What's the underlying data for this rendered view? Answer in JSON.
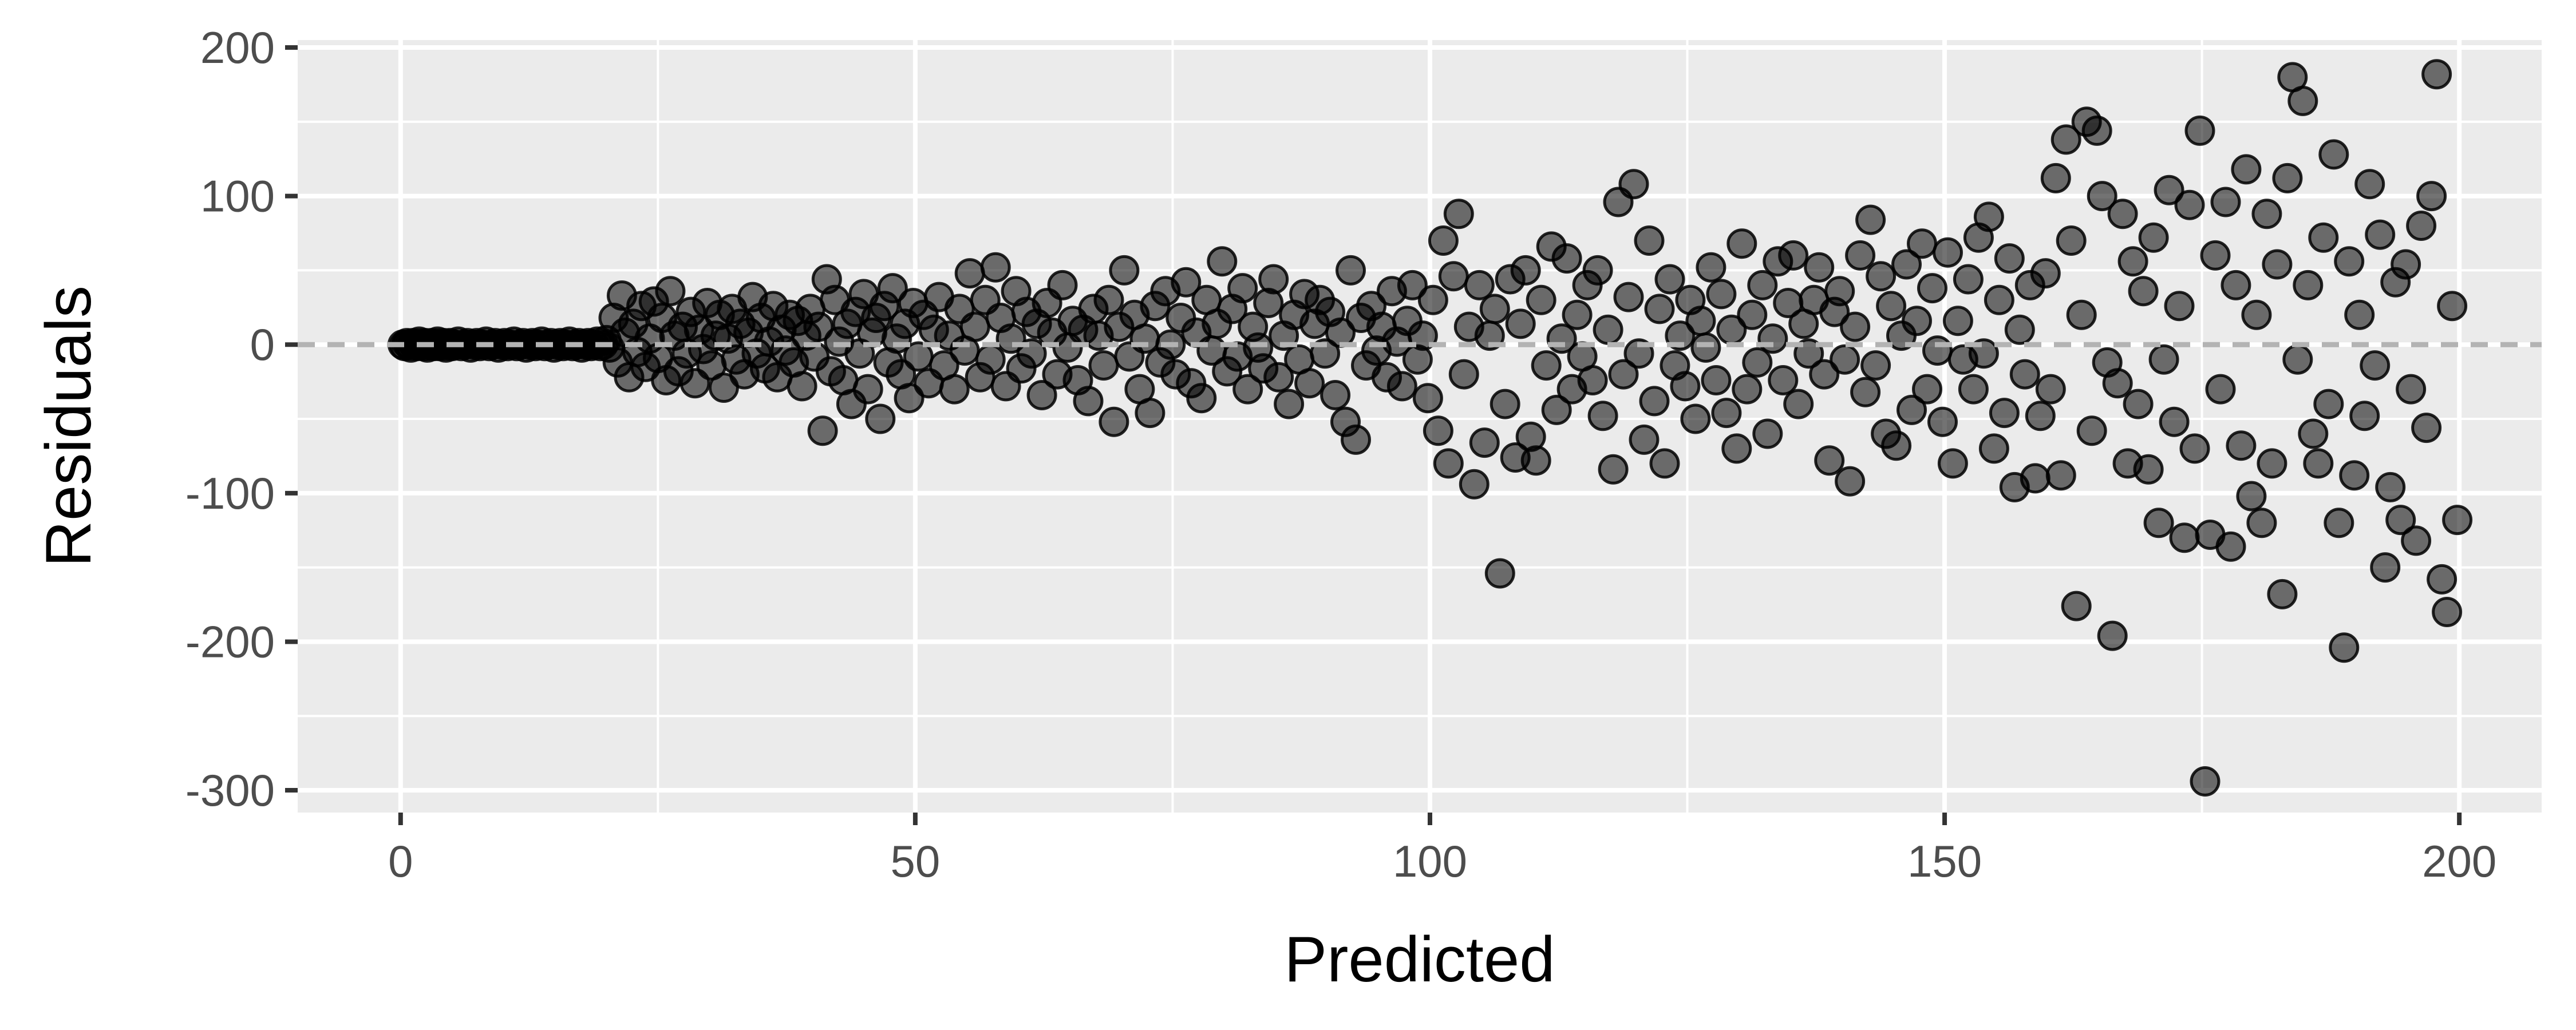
{
  "chart_data": {
    "type": "scatter",
    "title": "",
    "xlabel": "Predicted",
    "ylabel": "Residuals",
    "xlim": [
      -10,
      208
    ],
    "ylim": [
      -315,
      205
    ],
    "x_ticks": [
      0,
      50,
      100,
      150,
      200
    ],
    "y_ticks": [
      -300,
      -200,
      -100,
      0,
      100,
      200
    ],
    "x_tick_labels": [
      "0",
      "50",
      "100",
      "150",
      "200"
    ],
    "y_tick_labels": [
      "-300",
      "-200",
      "-100",
      "0",
      "100",
      "200"
    ],
    "grid": true,
    "legend": "none",
    "reference_line": {
      "y": 0,
      "style": "dashed",
      "color": "#b3b3b3"
    },
    "point_color": "#000000",
    "point_alpha": 0.55,
    "points": [
      [
        0.2,
        0
      ],
      [
        0.4,
        -1
      ],
      [
        0.6,
        1
      ],
      [
        0.8,
        0
      ],
      [
        1.0,
        -2
      ],
      [
        1.2,
        1
      ],
      [
        1.4,
        0
      ],
      [
        1.6,
        -1
      ],
      [
        1.8,
        2
      ],
      [
        2.0,
        0
      ],
      [
        2.2,
        -1
      ],
      [
        2.4,
        1
      ],
      [
        2.6,
        -2
      ],
      [
        2.8,
        0
      ],
      [
        3.0,
        1
      ],
      [
        3.2,
        -1
      ],
      [
        3.4,
        0
      ],
      [
        3.6,
        2
      ],
      [
        3.8,
        -1
      ],
      [
        4.0,
        0
      ],
      [
        4.2,
        1
      ],
      [
        4.4,
        -2
      ],
      [
        4.6,
        0
      ],
      [
        4.8,
        1
      ],
      [
        5.0,
        -1
      ],
      [
        5.3,
        0
      ],
      [
        5.6,
        2
      ],
      [
        5.9,
        -1
      ],
      [
        6.2,
        0
      ],
      [
        6.5,
        1
      ],
      [
        6.8,
        -2
      ],
      [
        7.1,
        0
      ],
      [
        7.4,
        1
      ],
      [
        7.7,
        -1
      ],
      [
        8.0,
        0
      ],
      [
        8.3,
        2
      ],
      [
        8.6,
        -1
      ],
      [
        8.9,
        0
      ],
      [
        9.2,
        1
      ],
      [
        9.5,
        -2
      ],
      [
        9.8,
        0
      ],
      [
        10.1,
        1
      ],
      [
        10.4,
        -1
      ],
      [
        10.7,
        0
      ],
      [
        11.0,
        2
      ],
      [
        11.3,
        -1
      ],
      [
        11.6,
        0
      ],
      [
        11.9,
        1
      ],
      [
        12.2,
        -2
      ],
      [
        12.5,
        0
      ],
      [
        12.8,
        1
      ],
      [
        13.1,
        -1
      ],
      [
        13.4,
        0
      ],
      [
        13.7,
        2
      ],
      [
        14.0,
        -1
      ],
      [
        14.3,
        0
      ],
      [
        14.6,
        1
      ],
      [
        14.9,
        -2
      ],
      [
        15.2,
        0
      ],
      [
        15.5,
        1
      ],
      [
        15.8,
        -1
      ],
      [
        16.1,
        0
      ],
      [
        16.4,
        2
      ],
      [
        16.7,
        -1
      ],
      [
        17.0,
        0
      ],
      [
        17.3,
        1
      ],
      [
        17.6,
        -2
      ],
      [
        17.9,
        0
      ],
      [
        18.2,
        1
      ],
      [
        18.5,
        -1
      ],
      [
        18.8,
        0
      ],
      [
        19.1,
        2
      ],
      [
        19.4,
        -1
      ],
      [
        19.7,
        0
      ],
      [
        20.0,
        3
      ],
      [
        20.3,
        -2
      ],
      [
        20.7,
        18
      ],
      [
        21.1,
        -12
      ],
      [
        21.5,
        33
      ],
      [
        21.8,
        8
      ],
      [
        22.2,
        -22
      ],
      [
        22.6,
        14
      ],
      [
        23.0,
        -5
      ],
      [
        23.4,
        26
      ],
      [
        23.8,
        -15
      ],
      [
        24.2,
        4
      ],
      [
        24.6,
        29
      ],
      [
        25.0,
        -9
      ],
      [
        25.4,
        18
      ],
      [
        25.8,
        -24
      ],
      [
        26.2,
        36
      ],
      [
        26.6,
        6
      ],
      [
        27.0,
        -18
      ],
      [
        27.4,
        12
      ],
      [
        27.8,
        -6
      ],
      [
        28.2,
        22
      ],
      [
        28.6,
        -26
      ],
      [
        29.0,
        10
      ],
      [
        29.4,
        -3
      ],
      [
        29.8,
        28
      ],
      [
        30.2,
        -14
      ],
      [
        30.6,
        6
      ],
      [
        31.0,
        20
      ],
      [
        31.4,
        -29
      ],
      [
        31.8,
        4
      ],
      [
        32.2,
        24
      ],
      [
        32.6,
        -10
      ],
      [
        33.0,
        14
      ],
      [
        33.4,
        -20
      ],
      [
        33.8,
        8
      ],
      [
        34.2,
        32
      ],
      [
        34.6,
        -6
      ],
      [
        35.0,
        18
      ],
      [
        35.4,
        -16
      ],
      [
        35.8,
        2
      ],
      [
        36.2,
        26
      ],
      [
        36.6,
        -22
      ],
      [
        37.0,
        10
      ],
      [
        37.4,
        -4
      ],
      [
        37.8,
        20
      ],
      [
        38.2,
        -12
      ],
      [
        38.6,
        16
      ],
      [
        39.0,
        -28
      ],
      [
        39.4,
        6
      ],
      [
        39.8,
        24
      ],
      [
        40.2,
        -8
      ],
      [
        40.6,
        12
      ],
      [
        41.0,
        -58
      ],
      [
        41.4,
        44
      ],
      [
        41.8,
        -18
      ],
      [
        42.2,
        30
      ],
      [
        42.6,
        2
      ],
      [
        43.0,
        -24
      ],
      [
        43.4,
        14
      ],
      [
        43.8,
        -40
      ],
      [
        44.2,
        22
      ],
      [
        44.6,
        -6
      ],
      [
        45.0,
        34
      ],
      [
        45.4,
        -30
      ],
      [
        45.8,
        8
      ],
      [
        46.2,
        18
      ],
      [
        46.6,
        -50
      ],
      [
        47.0,
        26
      ],
      [
        47.4,
        -12
      ],
      [
        47.8,
        38
      ],
      [
        48.2,
        4
      ],
      [
        48.6,
        -20
      ],
      [
        49.0,
        14
      ],
      [
        49.4,
        -36
      ],
      [
        49.8,
        28
      ],
      [
        50.3,
        -8
      ],
      [
        50.8,
        20
      ],
      [
        51.3,
        -26
      ],
      [
        51.8,
        10
      ],
      [
        52.3,
        32
      ],
      [
        52.8,
        -14
      ],
      [
        53.3,
        6
      ],
      [
        53.8,
        -30
      ],
      [
        54.3,
        24
      ],
      [
        54.8,
        -4
      ],
      [
        55.3,
        48
      ],
      [
        55.8,
        12
      ],
      [
        56.3,
        -22
      ],
      [
        56.8,
        30
      ],
      [
        57.3,
        -10
      ],
      [
        57.8,
        52
      ],
      [
        58.3,
        18
      ],
      [
        58.8,
        -28
      ],
      [
        59.3,
        4
      ],
      [
        59.8,
        36
      ],
      [
        60.3,
        -16
      ],
      [
        60.8,
        22
      ],
      [
        61.3,
        -6
      ],
      [
        61.8,
        14
      ],
      [
        62.3,
        -34
      ],
      [
        62.8,
        28
      ],
      [
        63.3,
        8
      ],
      [
        63.8,
        -20
      ],
      [
        64.3,
        40
      ],
      [
        64.8,
        -2
      ],
      [
        65.3,
        16
      ],
      [
        65.8,
        -24
      ],
      [
        66.3,
        10
      ],
      [
        66.8,
        -38
      ],
      [
        67.3,
        24
      ],
      [
        67.8,
        6
      ],
      [
        68.3,
        -14
      ],
      [
        68.8,
        30
      ],
      [
        69.3,
        -52
      ],
      [
        69.8,
        12
      ],
      [
        70.3,
        50
      ],
      [
        70.8,
        -8
      ],
      [
        71.3,
        20
      ],
      [
        71.8,
        -30
      ],
      [
        72.3,
        4
      ],
      [
        72.8,
        -46
      ],
      [
        73.3,
        26
      ],
      [
        73.8,
        -12
      ],
      [
        74.3,
        36
      ],
      [
        74.8,
        0
      ],
      [
        75.3,
        -20
      ],
      [
        75.8,
        18
      ],
      [
        76.3,
        42
      ],
      [
        76.8,
        -26
      ],
      [
        77.3,
        8
      ],
      [
        77.8,
        -36
      ],
      [
        78.3,
        30
      ],
      [
        78.8,
        -4
      ],
      [
        79.3,
        14
      ],
      [
        79.8,
        56
      ],
      [
        80.3,
        -18
      ],
      [
        80.8,
        24
      ],
      [
        81.3,
        -8
      ],
      [
        81.8,
        38
      ],
      [
        82.3,
        -30
      ],
      [
        82.8,
        12
      ],
      [
        83.3,
        -2
      ],
      [
        83.8,
        -16
      ],
      [
        84.3,
        28
      ],
      [
        84.8,
        44
      ],
      [
        85.3,
        -22
      ],
      [
        85.8,
        6
      ],
      [
        86.3,
        -40
      ],
      [
        86.8,
        20
      ],
      [
        87.3,
        -10
      ],
      [
        87.8,
        34
      ],
      [
        88.3,
        -26
      ],
      [
        88.8,
        14
      ],
      [
        89.3,
        30
      ],
      [
        89.8,
        -6
      ],
      [
        90.3,
        22
      ],
      [
        90.8,
        -34
      ],
      [
        91.3,
        8
      ],
      [
        91.8,
        -52
      ],
      [
        92.3,
        50
      ],
      [
        92.8,
        -64
      ],
      [
        93.3,
        18
      ],
      [
        93.8,
        -14
      ],
      [
        94.3,
        26
      ],
      [
        94.8,
        -4
      ],
      [
        95.3,
        12
      ],
      [
        95.8,
        -22
      ],
      [
        96.3,
        36
      ],
      [
        96.8,
        2
      ],
      [
        97.3,
        -28
      ],
      [
        97.8,
        16
      ],
      [
        98.3,
        40
      ],
      [
        98.8,
        -10
      ],
      [
        99.3,
        6
      ],
      [
        99.8,
        -36
      ],
      [
        100.3,
        30
      ],
      [
        100.8,
        -58
      ],
      [
        101.3,
        70
      ],
      [
        101.8,
        -80
      ],
      [
        102.3,
        46
      ],
      [
        102.8,
        88
      ],
      [
        103.3,
        -20
      ],
      [
        103.8,
        12
      ],
      [
        104.3,
        -94
      ],
      [
        104.8,
        40
      ],
      [
        105.3,
        -66
      ],
      [
        105.8,
        6
      ],
      [
        106.3,
        24
      ],
      [
        106.8,
        -154
      ],
      [
        107.3,
        -40
      ],
      [
        107.8,
        44
      ],
      [
        108.3,
        -76
      ],
      [
        108.8,
        14
      ],
      [
        109.3,
        50
      ],
      [
        109.8,
        -62
      ],
      [
        110.3,
        -78
      ],
      [
        110.8,
        30
      ],
      [
        111.3,
        -14
      ],
      [
        111.8,
        66
      ],
      [
        112.3,
        -44
      ],
      [
        112.8,
        4
      ],
      [
        113.3,
        58
      ],
      [
        113.8,
        -30
      ],
      [
        114.3,
        20
      ],
      [
        114.8,
        -8
      ],
      [
        115.3,
        40
      ],
      [
        115.8,
        -24
      ],
      [
        116.3,
        50
      ],
      [
        116.8,
        -48
      ],
      [
        117.3,
        10
      ],
      [
        117.8,
        -84
      ],
      [
        118.3,
        96
      ],
      [
        118.8,
        -20
      ],
      [
        119.3,
        32
      ],
      [
        119.8,
        108
      ],
      [
        120.3,
        -6
      ],
      [
        120.8,
        -64
      ],
      [
        121.3,
        70
      ],
      [
        121.8,
        -38
      ],
      [
        122.3,
        24
      ],
      [
        122.8,
        -80
      ],
      [
        123.3,
        44
      ],
      [
        123.8,
        -14
      ],
      [
        124.3,
        6
      ],
      [
        124.8,
        -28
      ],
      [
        125.3,
        30
      ],
      [
        125.8,
        -50
      ],
      [
        126.3,
        16
      ],
      [
        126.8,
        -2
      ],
      [
        127.3,
        52
      ],
      [
        127.8,
        -24
      ],
      [
        128.3,
        34
      ],
      [
        128.8,
        -46
      ],
      [
        129.3,
        10
      ],
      [
        129.8,
        -70
      ],
      [
        130.3,
        68
      ],
      [
        130.8,
        -30
      ],
      [
        131.3,
        20
      ],
      [
        131.8,
        -12
      ],
      [
        132.3,
        40
      ],
      [
        132.8,
        -60
      ],
      [
        133.3,
        4
      ],
      [
        133.8,
        56
      ],
      [
        134.3,
        -24
      ],
      [
        134.8,
        28
      ],
      [
        135.3,
        60
      ],
      [
        135.8,
        -40
      ],
      [
        136.3,
        14
      ],
      [
        136.8,
        -6
      ],
      [
        137.3,
        30
      ],
      [
        137.8,
        52
      ],
      [
        138.3,
        -20
      ],
      [
        138.8,
        -78
      ],
      [
        139.3,
        22
      ],
      [
        139.8,
        36
      ],
      [
        140.3,
        -10
      ],
      [
        140.8,
        -92
      ],
      [
        141.3,
        12
      ],
      [
        141.8,
        60
      ],
      [
        142.3,
        -32
      ],
      [
        142.8,
        84
      ],
      [
        143.3,
        -14
      ],
      [
        143.8,
        46
      ],
      [
        144.3,
        -60
      ],
      [
        144.8,
        26
      ],
      [
        145.3,
        -68
      ],
      [
        145.8,
        6
      ],
      [
        146.3,
        54
      ],
      [
        146.8,
        -44
      ],
      [
        147.3,
        16
      ],
      [
        147.8,
        68
      ],
      [
        148.3,
        -30
      ],
      [
        148.8,
        38
      ],
      [
        149.3,
        -4
      ],
      [
        149.8,
        -52
      ],
      [
        150.3,
        62
      ],
      [
        150.8,
        -80
      ],
      [
        151.3,
        16
      ],
      [
        151.8,
        -10
      ],
      [
        152.3,
        44
      ],
      [
        152.8,
        -30
      ],
      [
        153.3,
        72
      ],
      [
        153.8,
        -6
      ],
      [
        154.3,
        86
      ],
      [
        154.8,
        -70
      ],
      [
        155.3,
        30
      ],
      [
        155.8,
        -46
      ],
      [
        156.3,
        58
      ],
      [
        156.8,
        -96
      ],
      [
        157.3,
        10
      ],
      [
        157.8,
        -20
      ],
      [
        158.3,
        40
      ],
      [
        158.8,
        -90
      ],
      [
        159.3,
        -48
      ],
      [
        159.8,
        48
      ],
      [
        160.3,
        -30
      ],
      [
        160.8,
        112
      ],
      [
        161.3,
        -88
      ],
      [
        161.8,
        138
      ],
      [
        162.3,
        70
      ],
      [
        162.8,
        -176
      ],
      [
        163.3,
        20
      ],
      [
        163.8,
        150
      ],
      [
        164.3,
        -58
      ],
      [
        164.8,
        144
      ],
      [
        165.3,
        100
      ],
      [
        165.8,
        -12
      ],
      [
        166.3,
        -196
      ],
      [
        166.8,
        -26
      ],
      [
        167.3,
        88
      ],
      [
        167.8,
        -80
      ],
      [
        168.3,
        56
      ],
      [
        168.8,
        -40
      ],
      [
        169.3,
        36
      ],
      [
        169.8,
        -84
      ],
      [
        170.3,
        72
      ],
      [
        170.8,
        -120
      ],
      [
        171.3,
        -10
      ],
      [
        171.8,
        104
      ],
      [
        172.3,
        -52
      ],
      [
        172.8,
        26
      ],
      [
        173.3,
        -130
      ],
      [
        173.8,
        94
      ],
      [
        174.3,
        -70
      ],
      [
        174.8,
        144
      ],
      [
        175.3,
        -294
      ],
      [
        175.8,
        -128
      ],
      [
        176.3,
        60
      ],
      [
        176.8,
        -30
      ],
      [
        177.3,
        96
      ],
      [
        177.8,
        -136
      ],
      [
        178.3,
        40
      ],
      [
        178.8,
        -68
      ],
      [
        179.3,
        118
      ],
      [
        179.8,
        -102
      ],
      [
        180.3,
        20
      ],
      [
        180.8,
        -120
      ],
      [
        181.3,
        88
      ],
      [
        181.8,
        -80
      ],
      [
        182.3,
        54
      ],
      [
        182.8,
        -168
      ],
      [
        183.3,
        112
      ],
      [
        183.8,
        180
      ],
      [
        184.3,
        -10
      ],
      [
        184.8,
        164
      ],
      [
        185.3,
        40
      ],
      [
        185.8,
        -60
      ],
      [
        186.3,
        -80
      ],
      [
        186.8,
        72
      ],
      [
        187.3,
        -40
      ],
      [
        187.8,
        128
      ],
      [
        188.3,
        -120
      ],
      [
        188.8,
        -204
      ],
      [
        189.3,
        56
      ],
      [
        189.8,
        -88
      ],
      [
        190.3,
        20
      ],
      [
        190.8,
        -48
      ],
      [
        191.3,
        108
      ],
      [
        191.8,
        -14
      ],
      [
        192.3,
        74
      ],
      [
        192.8,
        -150
      ],
      [
        193.3,
        -96
      ],
      [
        193.8,
        42
      ],
      [
        194.3,
        -118
      ],
      [
        194.8,
        54
      ],
      [
        195.3,
        -30
      ],
      [
        195.8,
        -132
      ],
      [
        196.3,
        80
      ],
      [
        196.8,
        -56
      ],
      [
        197.3,
        100
      ],
      [
        197.8,
        182
      ],
      [
        198.3,
        -158
      ],
      [
        198.8,
        -180
      ],
      [
        199.3,
        26
      ],
      [
        199.8,
        -118
      ]
    ]
  }
}
